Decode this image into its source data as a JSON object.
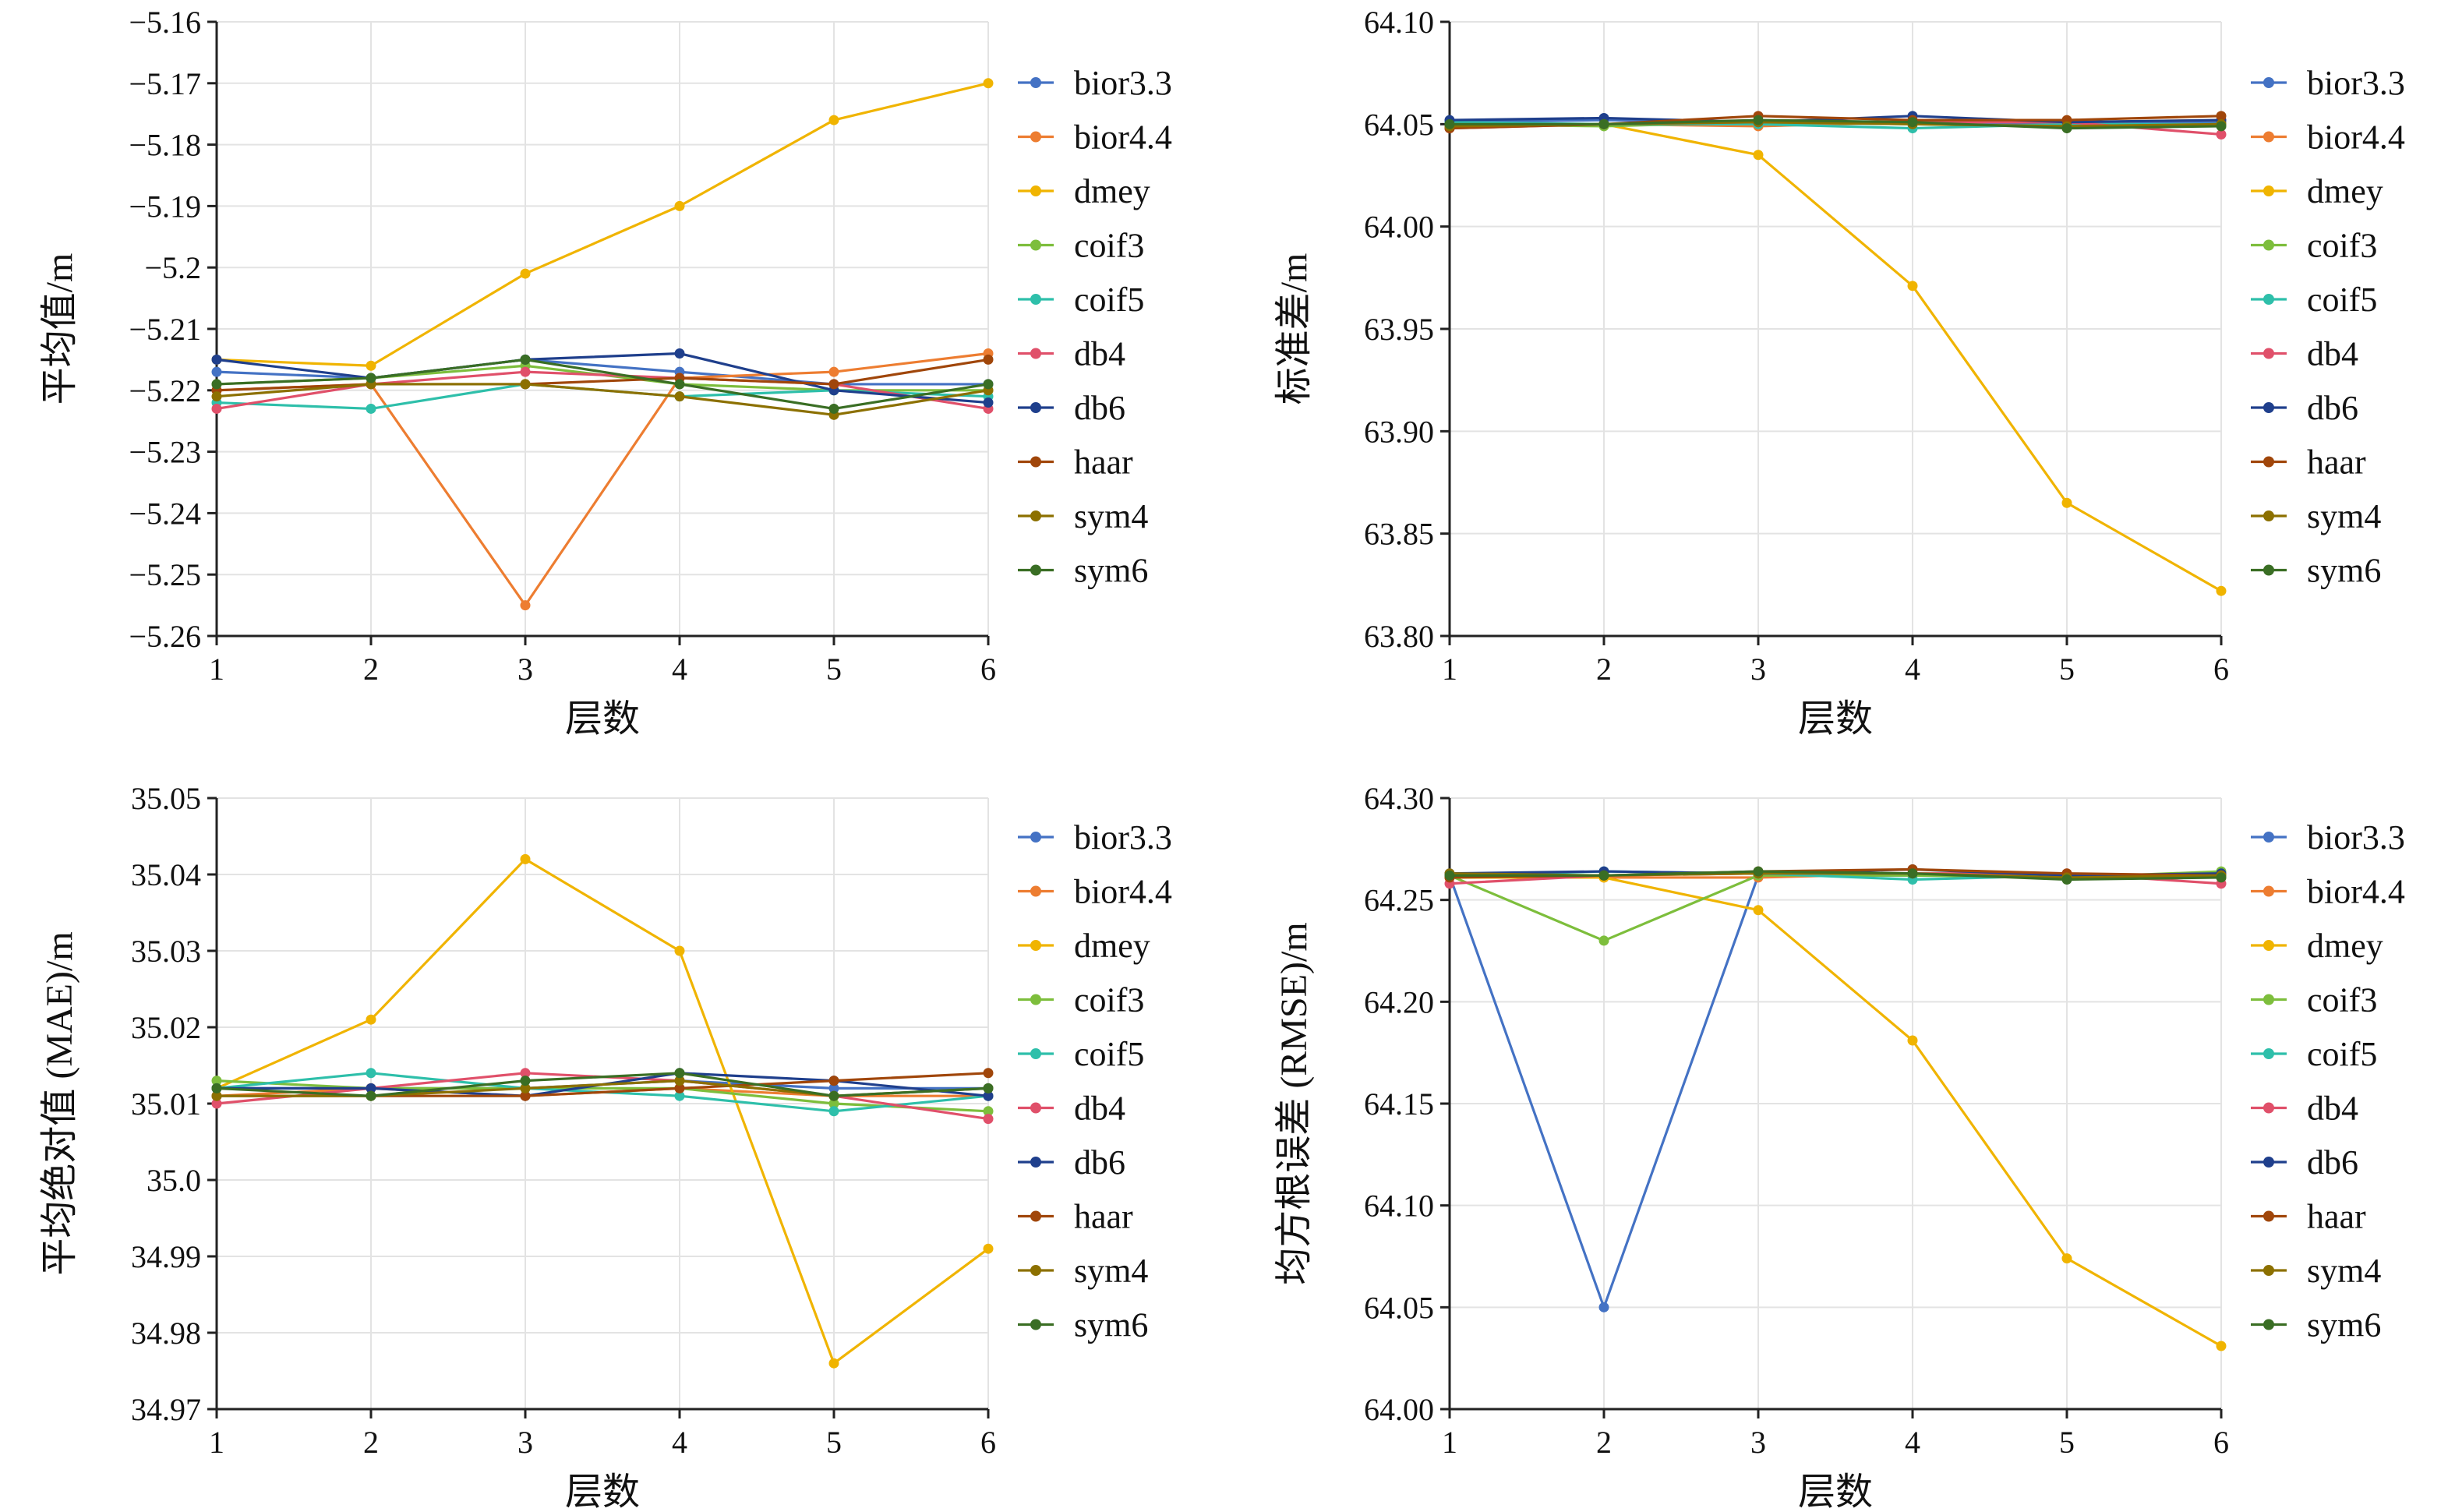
{
  "colors": {
    "bior3.3": "#4472C4",
    "bior4.4": "#ED7D31",
    "dmey": "#F0B400",
    "coif3": "#7DBE3C",
    "coif5": "#2EBFAA",
    "db4": "#E0506A",
    "db6": "#1F3F8C",
    "haar": "#A0460A",
    "sym4": "#8C7000",
    "sym6": "#3A6E24"
  },
  "chart_data": [
    {
      "type": "line",
      "xlabel": "层数",
      "ylabel": "平均值/m",
      "x": [
        1,
        2,
        3,
        4,
        5,
        6
      ],
      "ylim": [
        -5.26,
        -5.16
      ],
      "yticks": [
        -5.26,
        -5.25,
        -5.24,
        -5.23,
        -5.22,
        -5.21,
        -5.2,
        -5.19,
        -5.18,
        -5.17,
        -5.16
      ],
      "ytick_labels": [
        "−5.26",
        "−5.25",
        "−5.24",
        "−5.23",
        "−5.22",
        "−5.21",
        "−5.2",
        "−5.19",
        "−5.18",
        "−5.17",
        "−5.16"
      ],
      "xtick_labels": [
        "1",
        "2",
        "3",
        "4",
        "5",
        "6"
      ],
      "grid": true,
      "legend": "right",
      "series": [
        {
          "name": "bior3.3",
          "values": [
            -5.217,
            -5.218,
            -5.215,
            -5.217,
            -5.219,
            -5.219
          ]
        },
        {
          "name": "bior4.4",
          "values": [
            -5.22,
            -5.219,
            -5.255,
            -5.218,
            -5.217,
            -5.214
          ]
        },
        {
          "name": "dmey",
          "values": [
            -5.215,
            -5.216,
            -5.201,
            -5.19,
            -5.176,
            -5.17
          ]
        },
        {
          "name": "coif3",
          "values": [
            -5.219,
            -5.218,
            -5.216,
            -5.219,
            -5.22,
            -5.22
          ]
        },
        {
          "name": "coif5",
          "values": [
            -5.222,
            -5.223,
            -5.219,
            -5.221,
            -5.22,
            -5.221
          ]
        },
        {
          "name": "db4",
          "values": [
            -5.223,
            -5.219,
            -5.217,
            -5.218,
            -5.219,
            -5.223
          ]
        },
        {
          "name": "db6",
          "values": [
            -5.215,
            -5.218,
            -5.215,
            -5.214,
            -5.22,
            -5.222
          ]
        },
        {
          "name": "haar",
          "values": [
            -5.22,
            -5.219,
            -5.219,
            -5.218,
            -5.219,
            -5.215
          ]
        },
        {
          "name": "sym4",
          "values": [
            -5.221,
            -5.219,
            -5.219,
            -5.221,
            -5.224,
            -5.22
          ]
        },
        {
          "name": "sym6",
          "values": [
            -5.219,
            -5.218,
            -5.215,
            -5.219,
            -5.223,
            -5.219
          ]
        }
      ]
    },
    {
      "type": "line",
      "xlabel": "层数",
      "ylabel": "标准差/m",
      "x": [
        1,
        2,
        3,
        4,
        5,
        6
      ],
      "ylim": [
        63.8,
        64.1
      ],
      "yticks": [
        63.8,
        63.85,
        63.9,
        63.95,
        64.0,
        64.05,
        64.1
      ],
      "ytick_labels": [
        "63.80",
        "63.85",
        "63.90",
        "63.95",
        "64.00",
        "64.05",
        "64.10"
      ],
      "xtick_labels": [
        "1",
        "2",
        "3",
        "4",
        "5",
        "6"
      ],
      "grid": true,
      "legend": "right",
      "series": [
        {
          "name": "bior3.3",
          "values": [
            64.051,
            64.052,
            64.051,
            64.051,
            64.05,
            64.051
          ]
        },
        {
          "name": "bior4.4",
          "values": [
            64.05,
            64.05,
            64.049,
            64.051,
            64.051,
            64.052
          ]
        },
        {
          "name": "dmey",
          "values": [
            64.05,
            64.05,
            64.035,
            63.971,
            63.865,
            63.822
          ]
        },
        {
          "name": "coif3",
          "values": [
            64.05,
            64.049,
            64.051,
            64.05,
            64.049,
            64.05
          ]
        },
        {
          "name": "coif5",
          "values": [
            64.051,
            64.05,
            64.05,
            64.048,
            64.05,
            64.05
          ]
        },
        {
          "name": "db4",
          "values": [
            64.048,
            64.05,
            64.051,
            64.051,
            64.051,
            64.045
          ]
        },
        {
          "name": "db6",
          "values": [
            64.052,
            64.053,
            64.051,
            64.054,
            64.051,
            64.052
          ]
        },
        {
          "name": "haar",
          "values": [
            64.048,
            64.05,
            64.054,
            64.052,
            64.052,
            64.054
          ]
        },
        {
          "name": "sym4",
          "values": [
            64.049,
            64.05,
            64.051,
            64.05,
            64.049,
            64.05
          ]
        },
        {
          "name": "sym6",
          "values": [
            64.05,
            64.05,
            64.052,
            64.051,
            64.048,
            64.049
          ]
        }
      ]
    },
    {
      "type": "line",
      "xlabel": "层数",
      "ylabel": "平均绝对值 (MAE)/m",
      "x": [
        1,
        2,
        3,
        4,
        5,
        6
      ],
      "ylim": [
        34.97,
        35.05
      ],
      "yticks": [
        34.97,
        34.98,
        34.99,
        35.0,
        35.01,
        35.02,
        35.03,
        35.04,
        35.05
      ],
      "ytick_labels": [
        "34.97",
        "34.98",
        "34.99",
        "35.0",
        "35.01",
        "35.02",
        "35.03",
        "35.04",
        "35.05"
      ],
      "xtick_labels": [
        "1",
        "2",
        "3",
        "4",
        "5",
        "6"
      ],
      "grid": true,
      "legend": "right",
      "series": [
        {
          "name": "bior3.3",
          "values": [
            35.012,
            35.012,
            35.012,
            35.013,
            35.012,
            35.012
          ]
        },
        {
          "name": "bior4.4",
          "values": [
            35.011,
            35.012,
            35.011,
            35.012,
            35.011,
            35.011
          ]
        },
        {
          "name": "dmey",
          "values": [
            35.012,
            35.021,
            35.042,
            35.03,
            34.976,
            34.991
          ]
        },
        {
          "name": "coif3",
          "values": [
            35.013,
            35.012,
            35.012,
            35.012,
            35.01,
            35.009
          ]
        },
        {
          "name": "coif5",
          "values": [
            35.012,
            35.014,
            35.012,
            35.011,
            35.009,
            35.011
          ]
        },
        {
          "name": "db4",
          "values": [
            35.01,
            35.012,
            35.014,
            35.013,
            35.011,
            35.008
          ]
        },
        {
          "name": "db6",
          "values": [
            35.012,
            35.012,
            35.011,
            35.014,
            35.013,
            35.011
          ]
        },
        {
          "name": "haar",
          "values": [
            35.011,
            35.011,
            35.011,
            35.012,
            35.013,
            35.014
          ]
        },
        {
          "name": "sym4",
          "values": [
            35.011,
            35.011,
            35.012,
            35.013,
            35.011,
            35.012
          ]
        },
        {
          "name": "sym6",
          "values": [
            35.012,
            35.011,
            35.013,
            35.014,
            35.011,
            35.012
          ]
        }
      ]
    },
    {
      "type": "line",
      "xlabel": "层数",
      "ylabel": "均方根误差 (RMSE)/m",
      "x": [
        1,
        2,
        3,
        4,
        5,
        6
      ],
      "ylim": [
        64.0,
        64.3
      ],
      "yticks": [
        64.0,
        64.05,
        64.1,
        64.15,
        64.2,
        64.25,
        64.3
      ],
      "ytick_labels": [
        "64.00",
        "64.05",
        "64.10",
        "64.15",
        "64.20",
        "64.25",
        "64.30"
      ],
      "xtick_labels": [
        "1",
        "2",
        "3",
        "4",
        "5",
        "6"
      ],
      "grid": true,
      "legend": "right",
      "series": [
        {
          "name": "bior3.3",
          "values": [
            64.262,
            64.05,
            64.262,
            64.262,
            64.262,
            64.262
          ]
        },
        {
          "name": "bior4.4",
          "values": [
            64.261,
            64.261,
            64.261,
            64.263,
            64.262,
            64.261
          ]
        },
        {
          "name": "dmey",
          "values": [
            64.261,
            64.261,
            64.245,
            64.181,
            64.074,
            64.031
          ]
        },
        {
          "name": "coif3",
          "values": [
            64.262,
            64.23,
            64.262,
            64.262,
            64.261,
            64.264
          ]
        },
        {
          "name": "coif5",
          "values": [
            64.262,
            64.264,
            64.263,
            64.26,
            64.262,
            64.262
          ]
        },
        {
          "name": "db4",
          "values": [
            64.258,
            64.262,
            64.263,
            64.263,
            64.263,
            64.258
          ]
        },
        {
          "name": "db6",
          "values": [
            64.263,
            64.264,
            64.263,
            64.265,
            64.262,
            64.263
          ]
        },
        {
          "name": "haar",
          "values": [
            64.261,
            64.262,
            64.264,
            64.265,
            64.263,
            64.262
          ]
        },
        {
          "name": "sym4",
          "values": [
            64.263,
            64.262,
            64.263,
            64.263,
            64.261,
            64.262
          ]
        },
        {
          "name": "sym6",
          "values": [
            64.262,
            64.262,
            64.264,
            64.263,
            64.26,
            64.261
          ]
        }
      ]
    }
  ]
}
